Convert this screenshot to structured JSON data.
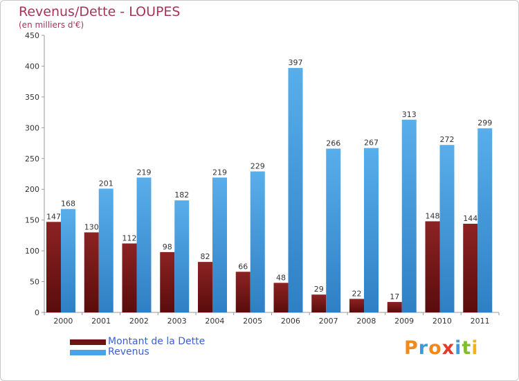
{
  "title": "Revenus/Dette - LOUPES",
  "subtitle": "(en milliers d'€)",
  "colors": {
    "dette": "#7a1a1a",
    "revenus": "#4aa3e6",
    "title": "#a8325a",
    "legend_text": "#3b5fd8"
  },
  "chart_data": {
    "type": "bar",
    "categories": [
      "2000",
      "2001",
      "2002",
      "2003",
      "2004",
      "2005",
      "2006",
      "2007",
      "2008",
      "2009",
      "2010",
      "2011"
    ],
    "series": [
      {
        "name": "Montant de la Dette",
        "values": [
          147,
          130,
          112,
          98,
          82,
          66,
          48,
          29,
          22,
          17,
          148,
          144
        ]
      },
      {
        "name": "Revenus",
        "values": [
          168,
          201,
          219,
          182,
          219,
          229,
          397,
          266,
          267,
          313,
          272,
          299
        ]
      }
    ],
    "ylim": [
      0,
      450
    ],
    "yticks": [
      0,
      50,
      100,
      150,
      200,
      250,
      300,
      350,
      400,
      450
    ],
    "grid": false,
    "legend_position": "bottom-left"
  },
  "legend": {
    "items": [
      {
        "label": "Montant de la Dette"
      },
      {
        "label": "Revenus"
      }
    ]
  },
  "logo": {
    "letters": [
      "P",
      "r",
      "o",
      "x",
      "i",
      "t",
      "i"
    ]
  }
}
